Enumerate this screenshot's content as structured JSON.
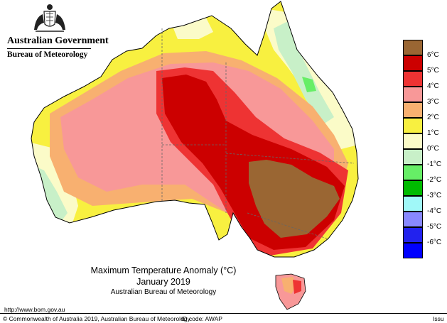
{
  "header": {
    "government": "Australian Government",
    "bureau": "Bureau of Meteorology",
    "crest_icon": "coat-of-arms-icon"
  },
  "legend": {
    "entries": [
      {
        "label": "6°C",
        "color": "#9a6633"
      },
      {
        "label": "5°C",
        "color": "#cc0000"
      },
      {
        "label": "4°C",
        "color": "#ee3333"
      },
      {
        "label": "3°C",
        "color": "#f89898"
      },
      {
        "label": "2°C",
        "color": "#f8b070"
      },
      {
        "label": "1°C",
        "color": "#f8f040"
      },
      {
        "label": "0°C",
        "color": "#fbfbc8"
      },
      {
        "label": "-1°C",
        "color": "#c8f0c8"
      },
      {
        "label": "-2°C",
        "color": "#66ee66"
      },
      {
        "label": "-3°C",
        "color": "#00bb00"
      },
      {
        "label": "-4°C",
        "color": "#a0f8f8"
      },
      {
        "label": "-5°C",
        "color": "#8888ff"
      },
      {
        "label": "-6°C",
        "color": "#2222ee"
      }
    ],
    "extra_swatch_color": "#0000ff"
  },
  "caption": {
    "title": "Maximum Temperature Anomaly (°C)",
    "date": "January 2019",
    "source": "Australian Bureau of Meteorology"
  },
  "footer": {
    "url": "http://www.bom.gov.au",
    "copyright": "© Commonwealth of Australia 2019, Australian Bureau of Meteorology",
    "id_code": "ID code: AWAP",
    "issued": "Issu"
  }
}
